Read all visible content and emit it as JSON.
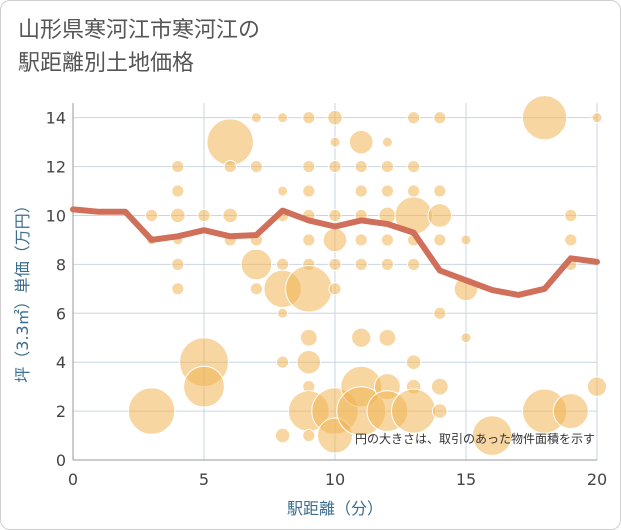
{
  "chart_data": {
    "type": "scatter",
    "title": "山形県寒河江市寒河江の\n駅距離別土地価格",
    "xlabel": "駅距離（分）",
    "ylabel": "坪（3.3㎡）単価（万円）",
    "xlim": [
      0,
      20
    ],
    "ylim": [
      0,
      14.6
    ],
    "x_ticks": [
      "0",
      "5",
      "10",
      "15",
      "20"
    ],
    "y_ticks": [
      "0",
      "2",
      "4",
      "6",
      "8",
      "10",
      "12",
      "14"
    ],
    "grid": true,
    "annotation": "円の大きさは、取引のあった物件面積を示す",
    "colors": {
      "bubble": "#f0b454",
      "line": "#d0705a",
      "grid": "#c9d6e3"
    },
    "series": [
      {
        "type": "bubble",
        "points": [
          {
            "x": 3,
            "y": 10,
            "s": 1
          },
          {
            "x": 3,
            "y": 2,
            "s": 4
          },
          {
            "x": 3,
            "y": 9,
            "s": 0.8
          },
          {
            "x": 4,
            "y": 12,
            "s": 1
          },
          {
            "x": 4,
            "y": 11,
            "s": 1
          },
          {
            "x": 4,
            "y": 10,
            "s": 1.2
          },
          {
            "x": 4,
            "y": 9,
            "s": 0.8
          },
          {
            "x": 4,
            "y": 8,
            "s": 1
          },
          {
            "x": 4,
            "y": 7,
            "s": 1
          },
          {
            "x": 5,
            "y": 10,
            "s": 1
          },
          {
            "x": 5,
            "y": 4,
            "s": 4.2
          },
          {
            "x": 5,
            "y": 3,
            "s": 3.5
          },
          {
            "x": 6,
            "y": 13,
            "s": 4
          },
          {
            "x": 6,
            "y": 12,
            "s": 1
          },
          {
            "x": 6,
            "y": 10,
            "s": 1.2
          },
          {
            "x": 6,
            "y": 9,
            "s": 1
          },
          {
            "x": 7,
            "y": 14,
            "s": 0.8
          },
          {
            "x": 7,
            "y": 12,
            "s": 1
          },
          {
            "x": 7,
            "y": 9,
            "s": 1
          },
          {
            "x": 7,
            "y": 8,
            "s": 2.6
          },
          {
            "x": 7,
            "y": 7,
            "s": 1
          },
          {
            "x": 8,
            "y": 14,
            "s": 0.8
          },
          {
            "x": 8,
            "y": 11,
            "s": 0.8
          },
          {
            "x": 8,
            "y": 10,
            "s": 1
          },
          {
            "x": 8,
            "y": 8,
            "s": 1
          },
          {
            "x": 8,
            "y": 7,
            "s": 3.2
          },
          {
            "x": 8,
            "y": 6,
            "s": 0.8
          },
          {
            "x": 8,
            "y": 4,
            "s": 1
          },
          {
            "x": 8,
            "y": 1,
            "s": 1.2
          },
          {
            "x": 9,
            "y": 14,
            "s": 1
          },
          {
            "x": 9,
            "y": 12,
            "s": 1
          },
          {
            "x": 9,
            "y": 11,
            "s": 1
          },
          {
            "x": 9,
            "y": 10,
            "s": 1
          },
          {
            "x": 9,
            "y": 9,
            "s": 1
          },
          {
            "x": 9,
            "y": 8,
            "s": 1
          },
          {
            "x": 9,
            "y": 7,
            "s": 4
          },
          {
            "x": 9,
            "y": 5,
            "s": 1.4
          },
          {
            "x": 9,
            "y": 4,
            "s": 2
          },
          {
            "x": 9,
            "y": 3,
            "s": 1
          },
          {
            "x": 9,
            "y": 2,
            "s": 3.5
          },
          {
            "x": 9,
            "y": 1,
            "s": 1
          },
          {
            "x": 10,
            "y": 14,
            "s": 1.2
          },
          {
            "x": 10,
            "y": 13,
            "s": 0.8
          },
          {
            "x": 10,
            "y": 12,
            "s": 1
          },
          {
            "x": 10,
            "y": 10,
            "s": 1
          },
          {
            "x": 10,
            "y": 9,
            "s": 2
          },
          {
            "x": 10,
            "y": 8,
            "s": 1
          },
          {
            "x": 10,
            "y": 7,
            "s": 1
          },
          {
            "x": 10,
            "y": 2,
            "s": 4
          },
          {
            "x": 10,
            "y": 1,
            "s": 3
          },
          {
            "x": 11,
            "y": 13,
            "s": 2
          },
          {
            "x": 11,
            "y": 12,
            "s": 1
          },
          {
            "x": 11,
            "y": 11,
            "s": 1
          },
          {
            "x": 11,
            "y": 10,
            "s": 1
          },
          {
            "x": 11,
            "y": 9,
            "s": 1
          },
          {
            "x": 11,
            "y": 8,
            "s": 1
          },
          {
            "x": 11,
            "y": 5,
            "s": 1.6
          },
          {
            "x": 11,
            "y": 3,
            "s": 3.5
          },
          {
            "x": 11,
            "y": 2,
            "s": 4.2
          },
          {
            "x": 12,
            "y": 13,
            "s": 0.8
          },
          {
            "x": 12,
            "y": 12,
            "s": 1
          },
          {
            "x": 12,
            "y": 11,
            "s": 1
          },
          {
            "x": 12,
            "y": 10,
            "s": 1.4
          },
          {
            "x": 12,
            "y": 9,
            "s": 1
          },
          {
            "x": 12,
            "y": 8,
            "s": 1
          },
          {
            "x": 12,
            "y": 5,
            "s": 1.4
          },
          {
            "x": 12,
            "y": 3,
            "s": 2.2
          },
          {
            "x": 12,
            "y": 2,
            "s": 3.5
          },
          {
            "x": 13,
            "y": 14,
            "s": 1
          },
          {
            "x": 13,
            "y": 12,
            "s": 1
          },
          {
            "x": 13,
            "y": 11,
            "s": 1
          },
          {
            "x": 13,
            "y": 10,
            "s": 3.2
          },
          {
            "x": 13,
            "y": 9,
            "s": 1
          },
          {
            "x": 13,
            "y": 8,
            "s": 1
          },
          {
            "x": 13,
            "y": 4,
            "s": 1.2
          },
          {
            "x": 13,
            "y": 3,
            "s": 1.2
          },
          {
            "x": 13,
            "y": 2,
            "s": 3.8
          },
          {
            "x": 14,
            "y": 14,
            "s": 1
          },
          {
            "x": 14,
            "y": 11,
            "s": 1
          },
          {
            "x": 14,
            "y": 10,
            "s": 2
          },
          {
            "x": 14,
            "y": 9,
            "s": 1
          },
          {
            "x": 14,
            "y": 6,
            "s": 1
          },
          {
            "x": 14,
            "y": 3,
            "s": 1.4
          },
          {
            "x": 14,
            "y": 2,
            "s": 1.2
          },
          {
            "x": 15,
            "y": 9,
            "s": 0.8
          },
          {
            "x": 15,
            "y": 7,
            "s": 2
          },
          {
            "x": 15,
            "y": 5,
            "s": 0.8
          },
          {
            "x": 16,
            "y": 1,
            "s": 3.4
          },
          {
            "x": 18,
            "y": 14,
            "s": 3.8
          },
          {
            "x": 18,
            "y": 2,
            "s": 3.8
          },
          {
            "x": 19,
            "y": 10,
            "s": 1
          },
          {
            "x": 19,
            "y": 9,
            "s": 1
          },
          {
            "x": 19,
            "y": 8,
            "s": 1
          },
          {
            "x": 19,
            "y": 2,
            "s": 3
          },
          {
            "x": 20,
            "y": 14,
            "s": 0.8
          },
          {
            "x": 20,
            "y": 3,
            "s": 1.6
          }
        ]
      },
      {
        "type": "line",
        "points": [
          {
            "x": 0,
            "y": 10.25
          },
          {
            "x": 1,
            "y": 10.15
          },
          {
            "x": 2,
            "y": 10.15
          },
          {
            "x": 3,
            "y": 9.0
          },
          {
            "x": 4,
            "y": 9.15
          },
          {
            "x": 5,
            "y": 9.4
          },
          {
            "x": 6,
            "y": 9.15
          },
          {
            "x": 7,
            "y": 9.2
          },
          {
            "x": 8,
            "y": 10.2
          },
          {
            "x": 9,
            "y": 9.8
          },
          {
            "x": 10,
            "y": 9.55
          },
          {
            "x": 11,
            "y": 9.8
          },
          {
            "x": 12,
            "y": 9.65
          },
          {
            "x": 13,
            "y": 9.3
          },
          {
            "x": 14,
            "y": 7.75
          },
          {
            "x": 15,
            "y": 7.35
          },
          {
            "x": 16,
            "y": 6.95
          },
          {
            "x": 17,
            "y": 6.75
          },
          {
            "x": 18,
            "y": 7.0
          },
          {
            "x": 19,
            "y": 8.25
          },
          {
            "x": 20,
            "y": 8.1
          }
        ]
      }
    ]
  }
}
